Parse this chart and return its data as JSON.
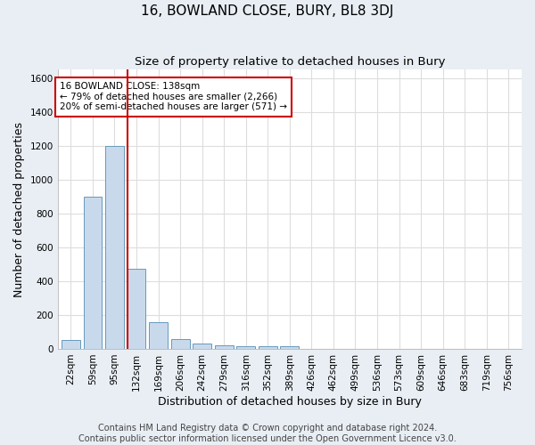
{
  "title": "16, BOWLAND CLOSE, BURY, BL8 3DJ",
  "subtitle": "Size of property relative to detached houses in Bury",
  "xlabel": "Distribution of detached houses by size in Bury",
  "ylabel": "Number of detached properties",
  "footer_line1": "Contains HM Land Registry data © Crown copyright and database right 2024.",
  "footer_line2": "Contains public sector information licensed under the Open Government Licence v3.0.",
  "annotation_line1": "16 BOWLAND CLOSE: 138sqm",
  "annotation_line2": "← 79% of detached houses are smaller (2,266)",
  "annotation_line3": "20% of semi-detached houses are larger (571) →",
  "bar_labels": [
    "22sqm",
    "59sqm",
    "95sqm",
    "132sqm",
    "169sqm",
    "206sqm",
    "242sqm",
    "279sqm",
    "316sqm",
    "352sqm",
    "389sqm",
    "426sqm",
    "462sqm",
    "499sqm",
    "536sqm",
    "573sqm",
    "609sqm",
    "646sqm",
    "683sqm",
    "719sqm",
    "756sqm"
  ],
  "bar_values": [
    50,
    900,
    1200,
    475,
    155,
    55,
    30,
    20,
    15,
    15,
    15,
    0,
    0,
    0,
    0,
    0,
    0,
    0,
    0,
    0,
    0
  ],
  "bar_color": "#c9d9ec",
  "bar_edge_color": "#6699bb",
  "red_line_index": 3,
  "red_line_color": "#cc0000",
  "ylim": [
    0,
    1650
  ],
  "yticks": [
    0,
    200,
    400,
    600,
    800,
    1000,
    1200,
    1400,
    1600
  ],
  "plot_bg_color": "#ffffff",
  "fig_bg_color": "#e8eef4",
  "grid_color": "#dddddd",
  "title_fontsize": 11,
  "subtitle_fontsize": 9.5,
  "axis_label_fontsize": 9,
  "tick_fontsize": 7.5,
  "annotation_fontsize": 7.5,
  "footer_fontsize": 7
}
